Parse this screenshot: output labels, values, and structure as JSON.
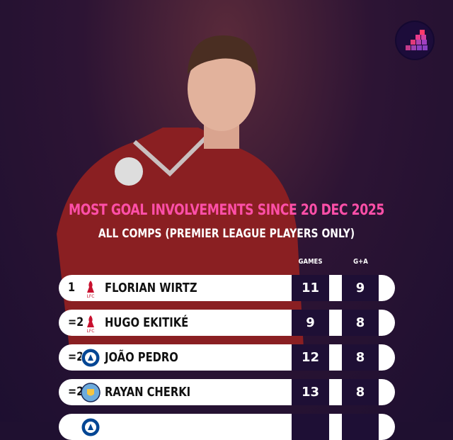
{
  "title": "MOST GOAL INVOLVEMENTS SINCE 20 DEC 2025",
  "subtitle": "ALL COMPS (PREMIER LEAGUE PLAYERS ONLY)",
  "columns": {
    "games": "GAMES",
    "ga": "G+A"
  },
  "colors": {
    "accent": "#ff4fa8",
    "panel": "#1e0f35"
  },
  "rows": [
    {
      "rank": "1",
      "club": "liverpool-crest",
      "name": "FLORIAN WIRTZ",
      "games": "11",
      "ga": "9"
    },
    {
      "rank": "=2",
      "club": "liverpool-crest",
      "name": "HUGO EKITIKÉ",
      "games": "9",
      "ga": "8"
    },
    {
      "rank": "=2",
      "club": "chelsea-crest",
      "name": "JOÃO PEDRO",
      "games": "12",
      "ga": "8"
    },
    {
      "rank": "=2",
      "club": "man-city-crest",
      "name": "RAYAN CHERKI",
      "games": "13",
      "ga": "8"
    },
    {
      "rank": "",
      "club": "chelsea-crest",
      "name": "",
      "games": "",
      "ga": ""
    }
  ]
}
